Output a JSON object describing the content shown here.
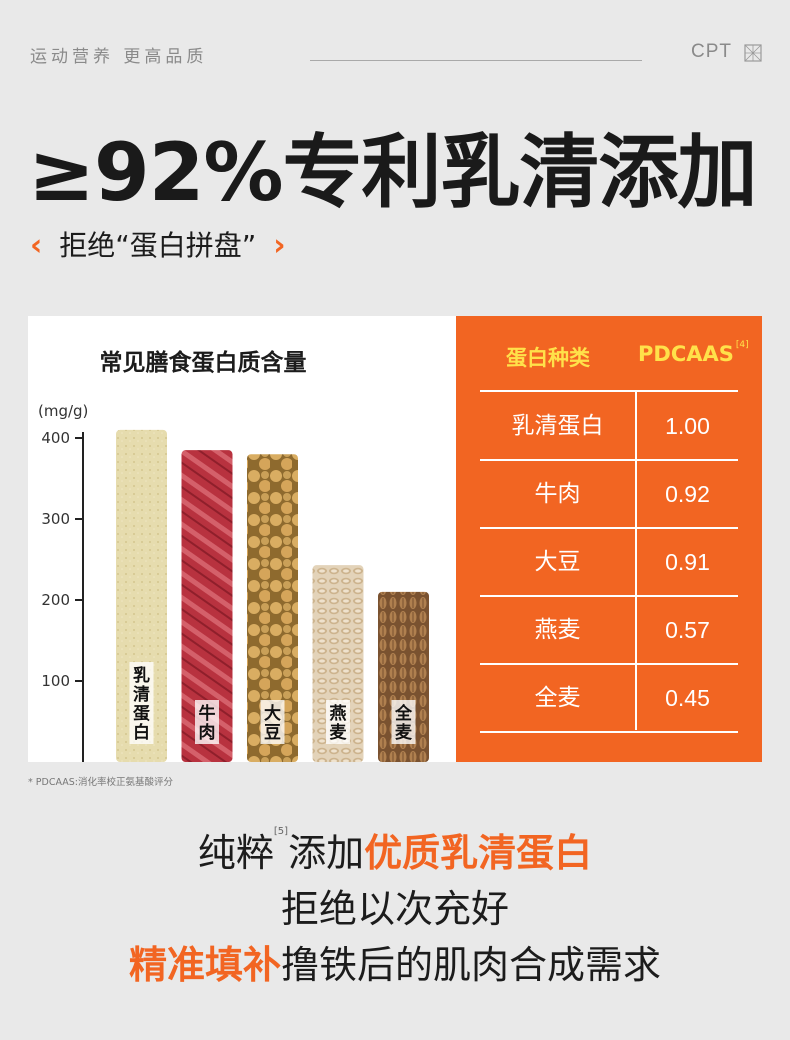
{
  "header": {
    "tagline": "运动营养  更高品质",
    "brand": "CPT"
  },
  "headline": "≥92%专利乳清添加",
  "subhead": {
    "open": "‹",
    "text": "拒绝“蛋白拼盘”",
    "close": "›"
  },
  "chart_data": {
    "type": "bar",
    "title": "常见膳食蛋白质含量",
    "ylabel": "(mg/g)",
    "ylim": [
      0,
      400
    ],
    "yticks": [
      "400",
      "300",
      "200",
      "100"
    ],
    "categories": [
      "乳清蛋白",
      "牛肉",
      "大豆",
      "燕麦",
      "全麦"
    ],
    "values": [
      410,
      385,
      380,
      243,
      210
    ]
  },
  "table": {
    "headers": [
      "蛋白种类",
      "PDCAAS"
    ],
    "ref": "[4]",
    "rows": [
      {
        "name": "乳清蛋白",
        "value": "1.00"
      },
      {
        "name": "牛肉",
        "value": "0.92"
      },
      {
        "name": "大豆",
        "value": "0.91"
      },
      {
        "name": "燕麦",
        "value": "0.57"
      },
      {
        "name": "全麦",
        "value": "0.45"
      }
    ]
  },
  "footnote": "* PDCAAS:消化率校正氨基酸评分",
  "closing": {
    "line1_a": "纯粹",
    "line1_ref": "[5]",
    "line1_b": "添加",
    "line1_hl": "优质乳清蛋白",
    "line2": "拒绝以次充好",
    "line3_hl": "精准填补",
    "line3_rest": "撸铁后的肌肉合成需求"
  },
  "colors": {
    "accent": "#f26522",
    "header_yellow": "#ffe14a",
    "background": "#e9e9e9"
  }
}
